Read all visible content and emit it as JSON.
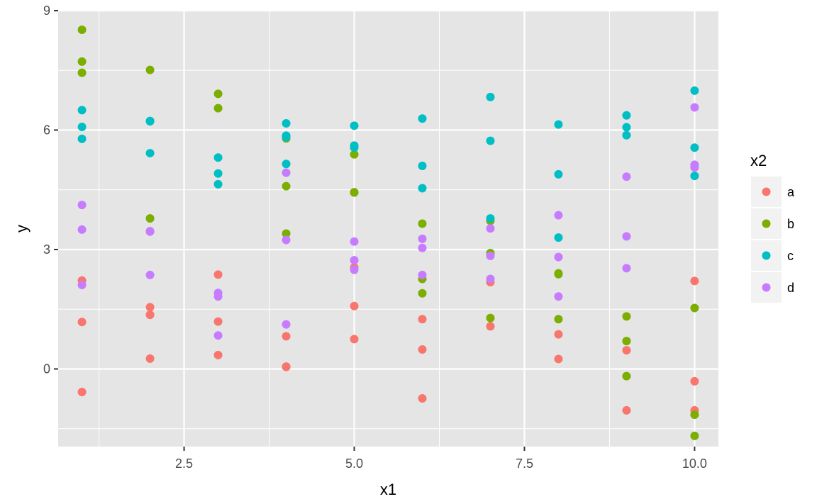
{
  "chart_data": {
    "type": "scatter",
    "xlabel": "x1",
    "ylabel": "y",
    "xlim": [
      0.65,
      10.35
    ],
    "ylim": [
      -1.95,
      9.0
    ],
    "x_ticks": [
      2.5,
      5.0,
      7.5,
      10.0
    ],
    "x_tick_labels": [
      "2.5",
      "5.0",
      "7.5",
      "10.0"
    ],
    "x_minor_ticks": [
      1.25,
      3.75,
      6.25,
      8.75
    ],
    "y_ticks": [
      0,
      3,
      6,
      9
    ],
    "y_tick_labels": [
      "0",
      "3",
      "6",
      "9"
    ],
    "y_minor_ticks": [
      -1.5,
      1.5,
      4.5,
      7.5
    ],
    "grid": true,
    "panel_background": "#e5e5e5",
    "grid_color": "#ffffff",
    "legend": {
      "title": "x2",
      "placement": "right"
    },
    "series": [
      {
        "name": "a",
        "color": "#f8766d",
        "points": [
          [
            1,
            2.22
          ],
          [
            1,
            1.18
          ],
          [
            1,
            -0.58
          ],
          [
            2,
            1.55
          ],
          [
            2,
            1.36
          ],
          [
            2,
            0.26
          ],
          [
            3,
            2.37
          ],
          [
            3,
            1.19
          ],
          [
            3,
            0.35
          ],
          [
            4,
            0.82
          ],
          [
            4,
            0.05
          ],
          [
            4,
            0.06
          ],
          [
            5,
            2.55
          ],
          [
            5,
            1.58
          ],
          [
            5,
            0.75
          ],
          [
            6,
            1.25
          ],
          [
            6,
            0.49
          ],
          [
            6,
            -0.74
          ],
          [
            7,
            2.18
          ],
          [
            7,
            1.07
          ],
          [
            8,
            0.87
          ],
          [
            8,
            0.25
          ],
          [
            9,
            0.47
          ],
          [
            9,
            -1.04
          ],
          [
            10,
            2.21
          ],
          [
            10,
            -0.31
          ],
          [
            10,
            -1.04
          ]
        ]
      },
      {
        "name": "b",
        "color": "#7cae00",
        "points": [
          [
            1,
            8.52
          ],
          [
            1,
            7.72
          ],
          [
            1,
            7.44
          ],
          [
            2,
            7.51
          ],
          [
            2,
            3.78
          ],
          [
            3,
            6.91
          ],
          [
            3,
            6.55
          ],
          [
            4,
            5.79
          ],
          [
            4,
            4.59
          ],
          [
            4,
            3.4
          ],
          [
            5,
            5.39
          ],
          [
            5,
            4.44
          ],
          [
            5,
            4.43
          ],
          [
            6,
            3.65
          ],
          [
            6,
            2.26
          ],
          [
            6,
            1.9
          ],
          [
            7,
            3.72
          ],
          [
            7,
            2.91
          ],
          [
            7,
            1.28
          ],
          [
            8,
            2.4
          ],
          [
            8,
            2.38
          ],
          [
            8,
            1.25
          ],
          [
            9,
            1.32
          ],
          [
            9,
            0.7
          ],
          [
            9,
            -0.18
          ],
          [
            10,
            1.53
          ],
          [
            10,
            -1.15
          ],
          [
            10,
            -1.68
          ]
        ]
      },
      {
        "name": "c",
        "color": "#00bfc4",
        "points": [
          [
            1,
            6.5
          ],
          [
            1,
            6.08
          ],
          [
            1,
            5.78
          ],
          [
            2,
            6.23
          ],
          [
            2,
            6.22
          ],
          [
            2,
            5.42
          ],
          [
            3,
            5.31
          ],
          [
            3,
            4.91
          ],
          [
            3,
            4.64
          ],
          [
            4,
            6.17
          ],
          [
            4,
            5.86
          ],
          [
            4,
            5.82
          ],
          [
            4,
            5.15
          ],
          [
            5,
            6.11
          ],
          [
            5,
            5.61
          ],
          [
            5,
            5.56
          ],
          [
            6,
            6.29
          ],
          [
            6,
            5.1
          ],
          [
            6,
            4.54
          ],
          [
            7,
            6.83
          ],
          [
            7,
            5.73
          ],
          [
            7,
            3.78
          ],
          [
            8,
            6.14
          ],
          [
            8,
            4.89
          ],
          [
            8,
            3.3
          ],
          [
            9,
            6.37
          ],
          [
            9,
            6.07
          ],
          [
            9,
            5.87
          ],
          [
            10,
            6.99
          ],
          [
            10,
            5.56
          ],
          [
            10,
            4.85
          ]
        ]
      },
      {
        "name": "d",
        "color": "#c77cff",
        "points": [
          [
            1,
            4.12
          ],
          [
            1,
            3.5
          ],
          [
            1,
            2.11
          ],
          [
            2,
            3.46
          ],
          [
            2,
            3.45
          ],
          [
            2,
            2.36
          ],
          [
            3,
            1.91
          ],
          [
            3,
            1.82
          ],
          [
            3,
            0.84
          ],
          [
            4,
            4.93
          ],
          [
            4,
            3.24
          ],
          [
            4,
            1.12
          ],
          [
            5,
            3.2
          ],
          [
            5,
            2.73
          ],
          [
            5,
            2.49
          ],
          [
            6,
            3.27
          ],
          [
            6,
            3.04
          ],
          [
            6,
            2.36
          ],
          [
            7,
            3.53
          ],
          [
            7,
            2.84
          ],
          [
            7,
            2.26
          ],
          [
            8,
            3.86
          ],
          [
            8,
            2.81
          ],
          [
            8,
            1.82
          ],
          [
            9,
            4.83
          ],
          [
            9,
            3.33
          ],
          [
            9,
            2.53
          ],
          [
            10,
            6.57
          ],
          [
            10,
            5.13
          ],
          [
            10,
            5.06
          ]
        ]
      }
    ]
  }
}
